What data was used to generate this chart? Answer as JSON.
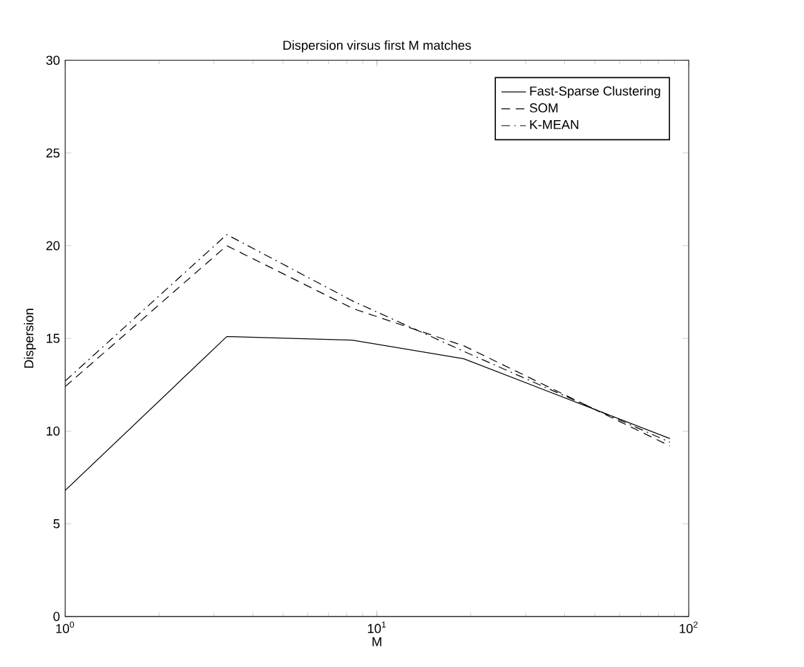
{
  "chart_data": {
    "type": "line",
    "title": "Dispersion virsus first M matches",
    "xlabel": "M",
    "ylabel": "Dispersion",
    "log": "x",
    "x": [
      1,
      3.3,
      8.4,
      19,
      87
    ],
    "series": [
      {
        "name": "Fast-Sparse Clustering",
        "color": "#000000",
        "line_style": "solid",
        "values": [
          6.8,
          15.1,
          14.9,
          13.9,
          9.6
        ]
      },
      {
        "name": "SOM",
        "color": "#000000",
        "line_style": "dashed",
        "values": [
          12.4,
          20.0,
          16.6,
          14.6,
          9.2
        ]
      },
      {
        "name": "K-MEAN",
        "color": "#000000",
        "line_style": "dashdot",
        "values": [
          12.7,
          20.6,
          17.0,
          14.3,
          9.4
        ]
      }
    ],
    "xlim": [
      1,
      100
    ],
    "xticks": [
      {
        "value": 1,
        "label": "10$^{0}$"
      },
      {
        "value": 10,
        "label": "10$^{1}$"
      },
      {
        "value": 100,
        "label": "10$^{2}$"
      }
    ],
    "ylim": [
      0,
      30
    ],
    "yticks": [
      0,
      5,
      10,
      15,
      20,
      25,
      30
    ],
    "grid": false,
    "legend": "top right",
    "marker": "none"
  }
}
